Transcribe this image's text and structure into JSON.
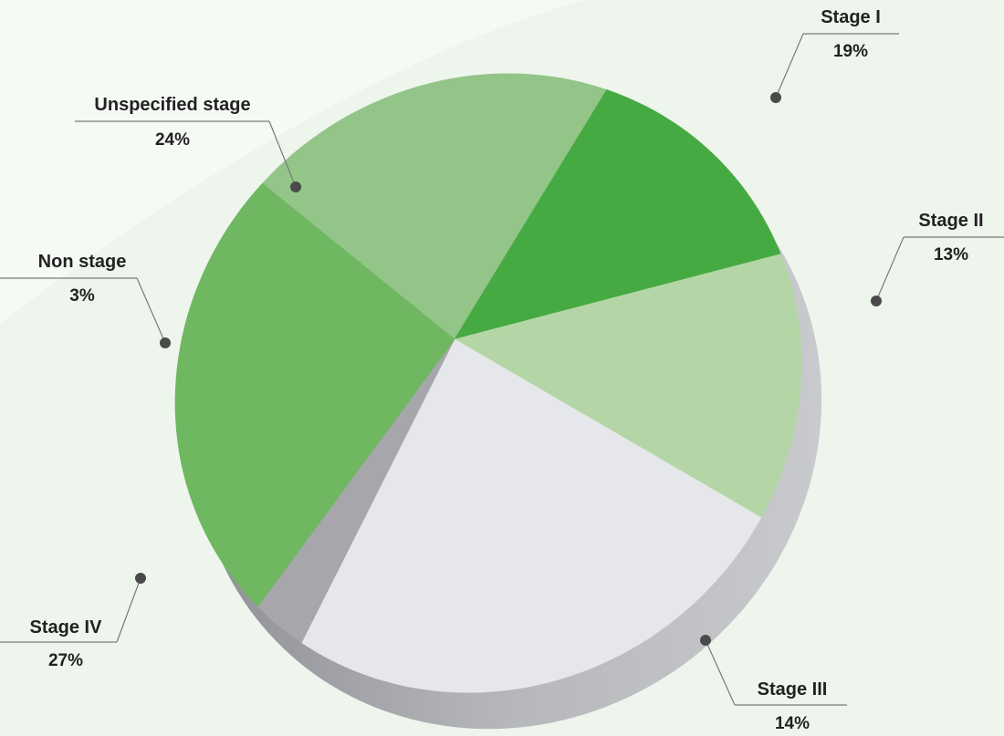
{
  "chart_data": {
    "type": "pie",
    "title": "",
    "categories": [
      "Stage I",
      "Stage II",
      "Stage III",
      "Stage IV",
      "Non stage",
      "Unspecified stage"
    ],
    "values": [
      19,
      13,
      14,
      27,
      3,
      24
    ],
    "labels": [
      "19%",
      "13%",
      "14%",
      "27%",
      "3%",
      "24%"
    ],
    "colors": [
      "#93c588",
      "#46aa42",
      "#b4d6a6",
      "#e6e7ea",
      "#a6a6ab",
      "#6fb761"
    ],
    "depth_color": "#b9babd",
    "legend": "none",
    "grid": false
  }
}
